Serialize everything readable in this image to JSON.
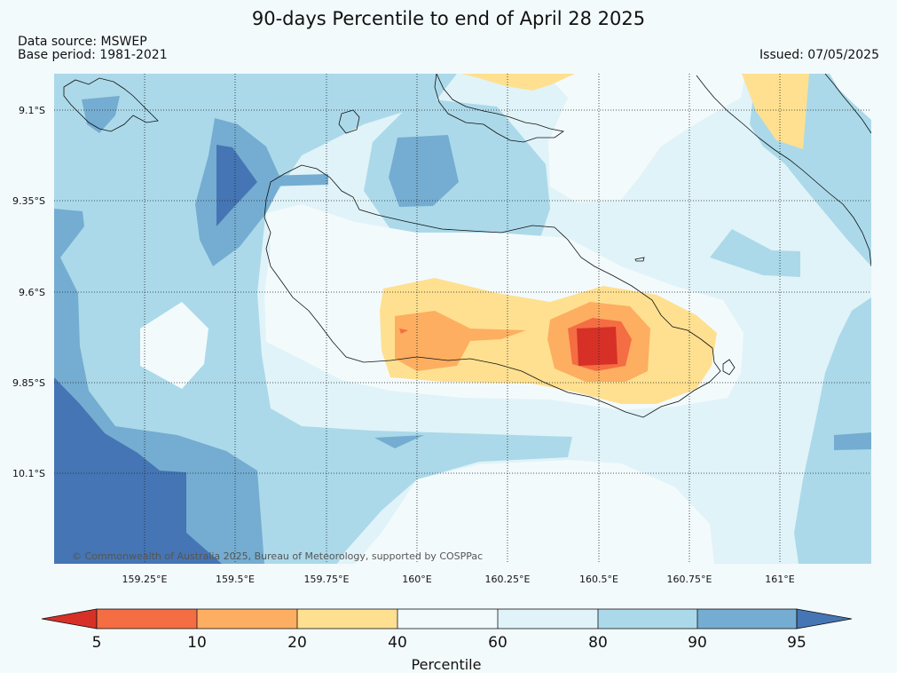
{
  "header": {
    "title": "90-days Percentile to end of April 28 2025",
    "data_source": "Data source: MSWEP",
    "base_period": "Base period: 1981-2021",
    "issued": "Issued: 07/05/2025"
  },
  "map": {
    "credit": "© Commonwealth of Australia 2025, Bureau of Meteorology, supported by COSPPac",
    "lon_labels": [
      "159.25°E",
      "159.5°E",
      "159.75°E",
      "160°E",
      "160.25°E",
      "160.5°E",
      "160.75°E",
      "161°E"
    ],
    "lat_labels": [
      "9.1°S",
      "9.35°S",
      "9.6°S",
      "9.85°S",
      "10.1°S"
    ],
    "lon_values": [
      159.25,
      159.5,
      159.75,
      160.0,
      160.25,
      160.5,
      160.75,
      161.0
    ],
    "lat_values": [
      -9.1,
      -9.35,
      -9.6,
      -9.85,
      -10.1
    ],
    "extent": {
      "lon_min": 159.0,
      "lon_max": 161.25,
      "lat_min": -10.35,
      "lat_max": -9.0
    }
  },
  "legend": {
    "title": "Percentile",
    "tick_labels": [
      "5",
      "10",
      "20",
      "40",
      "60",
      "80",
      "90",
      "95"
    ],
    "colors": [
      "#d73027",
      "#f46d43",
      "#fdae61",
      "#fee090",
      "#f3fafc",
      "#e0f3f8",
      "#abd9e9",
      "#74add1",
      "#4575b4"
    ]
  }
}
